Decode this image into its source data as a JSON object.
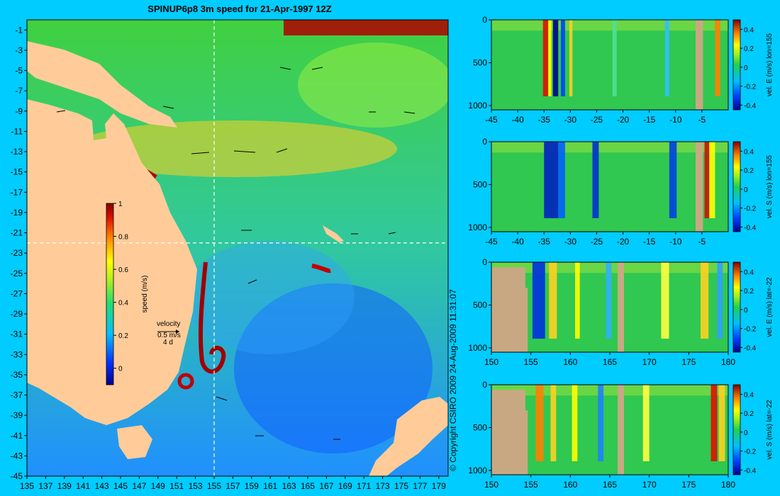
{
  "title": "SPINUP6p8 3m speed for 21-Apr-1997 12Z",
  "copyright": "© Copyright CSIRO 2009   24-Aug-2009 11:31:07",
  "colors": {
    "background": "#00ccff",
    "land": "#ffcc99",
    "land_section": "#c8a882",
    "crosshair": "#ffffff"
  },
  "map": {
    "x_ticks": [
      135,
      137,
      139,
      141,
      143,
      145,
      147,
      149,
      151,
      153,
      155,
      157,
      159,
      161,
      163,
      165,
      167,
      169,
      171,
      173,
      175,
      177,
      179
    ],
    "y_ticks": [
      -1,
      -3,
      -5,
      -7,
      -9,
      -11,
      -13,
      -15,
      -17,
      -19,
      -21,
      -23,
      -25,
      -27,
      -29,
      -31,
      -33,
      -35,
      -37,
      -39,
      -41,
      -43,
      -45
    ],
    "xlim": [
      135,
      180
    ],
    "ylim": [
      -45,
      0
    ],
    "crosshair": {
      "lon": 155,
      "lat": -22
    },
    "colorbar": {
      "label": "speed (m/s)",
      "ticks": [
        {
          "value": 0,
          "text": "0"
        },
        {
          "value": 0.2,
          "text": "0.2"
        },
        {
          "value": 0.4,
          "text": "0.4"
        },
        {
          "value": 0.6,
          "text": "0.6"
        },
        {
          "value": 0.8,
          "text": "0.8"
        },
        {
          "value": 1,
          "text": "1"
        }
      ],
      "range": [
        -0.1,
        1
      ]
    },
    "velocity_key": {
      "title": "velocity",
      "speed": "0.5 m/s",
      "duration": "4 d"
    }
  },
  "chart_data": [
    {
      "type": "heatmap",
      "title": "SPINUP6p8 3m speed for 21-Apr-1997 12Z",
      "xlabel": "",
      "ylabel": "",
      "xlim": [
        135,
        180
      ],
      "ylim": [
        -45,
        0
      ],
      "colorbar_label": "speed (m/s)",
      "colorbar_range": [
        -0.1,
        1
      ]
    },
    {
      "type": "heatmap",
      "ylabel": "vel. E (m/s) lon=155",
      "x_ticks": [
        -45,
        -40,
        -35,
        -30,
        -25,
        -20,
        -15,
        -10,
        -5
      ],
      "y_ticks": [
        0,
        500,
        1000
      ],
      "xlim": [
        -45,
        0
      ],
      "ylim": [
        1050,
        0
      ],
      "colorbar_ticks": [
        0.4,
        0.2,
        0,
        -0.2,
        -0.4
      ],
      "colorbar_range": [
        -0.45,
        0.5
      ]
    },
    {
      "type": "heatmap",
      "ylabel": "vel. S (m/s) lon=155",
      "x_ticks": [
        -45,
        -40,
        -35,
        -30,
        -25,
        -20,
        -15,
        -10,
        -5
      ],
      "y_ticks": [
        0,
        500,
        1000
      ],
      "xlim": [
        -45,
        0
      ],
      "ylim": [
        1050,
        0
      ],
      "colorbar_ticks": [
        0.4,
        0.2,
        0,
        -0.2,
        -0.4
      ],
      "colorbar_range": [
        -0.45,
        0.5
      ]
    },
    {
      "type": "heatmap",
      "ylabel": "vel. E (m/s) lat=-22",
      "x_ticks": [
        150,
        155,
        160,
        165,
        170,
        175,
        180
      ],
      "y_ticks": [
        0,
        500,
        1000
      ],
      "xlim": [
        150,
        180
      ],
      "ylim": [
        1050,
        0
      ],
      "colorbar_ticks": [
        0.4,
        0.2,
        0,
        -0.2,
        -0.4
      ],
      "colorbar_range": [
        -0.45,
        0.5
      ]
    },
    {
      "type": "heatmap",
      "ylabel": "vel. S (m/s) lat=-22",
      "x_ticks": [
        150,
        155,
        160,
        165,
        170,
        175,
        180
      ],
      "y_ticks": [
        0,
        500,
        1000
      ],
      "xlim": [
        150,
        180
      ],
      "ylim": [
        1050,
        0
      ],
      "colorbar_ticks": [
        0.4,
        0.2,
        0,
        -0.2,
        -0.4
      ],
      "colorbar_range": [
        -0.45,
        0.5
      ]
    }
  ]
}
